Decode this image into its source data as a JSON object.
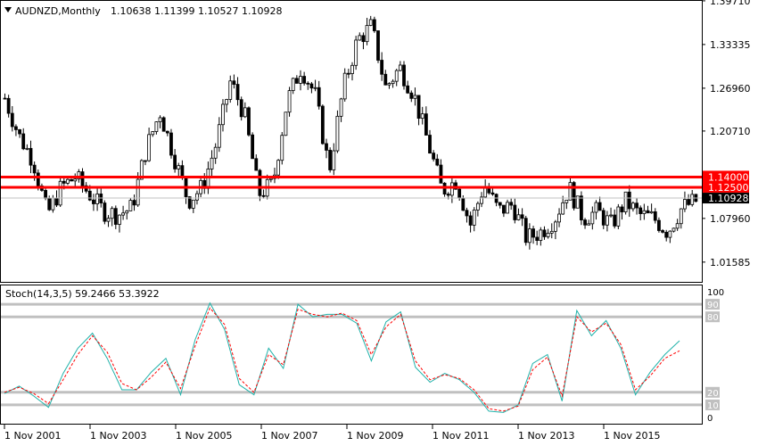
{
  "header": {
    "symbol": "AUDNZD,Monthly",
    "ohlc": "1.10638 1.11399 1.10527 1.10928"
  },
  "stoch_header": {
    "label": "Stoch(14,3,5) 59.2466 53.3922"
  },
  "colors": {
    "candle": "#000000",
    "level_line": "#ff0000",
    "level_label_bg": "#ff0000",
    "price_label_bg": "#000000",
    "stoch_main": "#20b2aa",
    "stoch_signal": "#ff0000",
    "stoch_levels": "#c0c0c0"
  },
  "chart_data": [
    {
      "type": "candlestick",
      "title": "AUDNZD,Monthly",
      "y_ticks": [
        "1.39710",
        "1.33335",
        "1.26960",
        "1.20710",
        "1.14000",
        "1.12500",
        "1.10928",
        "1.07960",
        "1.01585"
      ],
      "ylim": [
        0.987,
        1.397
      ],
      "x_ticks": [
        "1 Nov 2001",
        "1 Nov 2003",
        "1 Nov 2005",
        "1 Nov 2007",
        "1 Nov 2009",
        "1 Nov 2011",
        "1 Nov 2013",
        "1 Nov 2015"
      ],
      "x_range": [
        "2001-03",
        "2016-10"
      ],
      "horizontal_levels": [
        {
          "value": 1.14,
          "label": "1.14000"
        },
        {
          "value": 1.125,
          "label": "1.12500"
        }
      ],
      "current_price": {
        "value": 1.10928,
        "label": "1.10928"
      },
      "close_series": [
        1.255,
        1.2,
        1.165,
        1.085,
        1.125,
        1.14,
        1.115,
        1.09,
        1.085,
        1.095,
        1.18,
        1.235,
        1.17,
        1.105,
        1.125,
        1.19,
        1.28,
        1.23,
        1.115,
        1.13,
        1.25,
        1.3,
        1.26,
        1.15,
        1.27,
        1.34,
        1.36,
        1.27,
        1.3,
        1.26,
        1.19,
        1.12,
        1.135,
        1.07,
        1.13,
        1.09,
        1.1,
        1.05,
        1.06,
        1.08,
        1.125,
        1.08,
        1.09,
        1.07,
        1.105,
        1.085,
        1.08,
        1.06,
        1.095,
        1.105
      ]
    },
    {
      "type": "line",
      "title": "Stoch(14,3,5) 59.2466 53.3922",
      "ylim": [
        0,
        100
      ],
      "levels": [
        {
          "value": 100,
          "label": "100"
        },
        {
          "value": 90,
          "label": "90"
        },
        {
          "value": 80,
          "label": "80"
        },
        {
          "value": 20,
          "label": "20"
        },
        {
          "value": 10,
          "label": "10"
        },
        {
          "value": 0,
          "label": "0"
        }
      ],
      "series": [
        {
          "values": [
            19,
            25,
            17,
            8,
            35,
            55,
            67,
            47,
            22,
            22,
            36,
            47,
            18,
            62,
            91,
            70,
            26,
            18,
            55,
            39,
            90,
            80,
            82,
            82,
            75,
            45,
            76,
            84,
            40,
            28,
            35,
            30,
            20,
            5,
            4,
            10,
            43,
            50,
            13,
            85,
            65,
            77,
            55,
            18,
            36,
            50,
            61
          ]
        },
        {
          "values": [
            20,
            24,
            19,
            11,
            30,
            50,
            65,
            52,
            27,
            22,
            32,
            44,
            23,
            57,
            87,
            74,
            31,
            20,
            50,
            42,
            86,
            82,
            80,
            83,
            77,
            50,
            72,
            82,
            45,
            30,
            34,
            31,
            22,
            7,
            5,
            9,
            38,
            48,
            17,
            80,
            68,
            75,
            58,
            22,
            33,
            47,
            53
          ]
        }
      ]
    }
  ]
}
